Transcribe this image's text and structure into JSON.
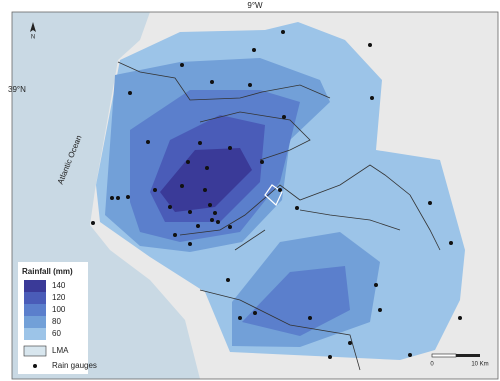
{
  "map": {
    "top_label": "9°W",
    "left_label": "39°N",
    "north": "N",
    "ocean": "Atlantic Ocean",
    "legend": {
      "title": "Rainfall (mm)",
      "classes": [
        140,
        120,
        100,
        80,
        60
      ],
      "lma": "LMA",
      "gauges": "Rain gauges"
    },
    "scale": {
      "start": "0",
      "end": "10 Km"
    }
  }
}
